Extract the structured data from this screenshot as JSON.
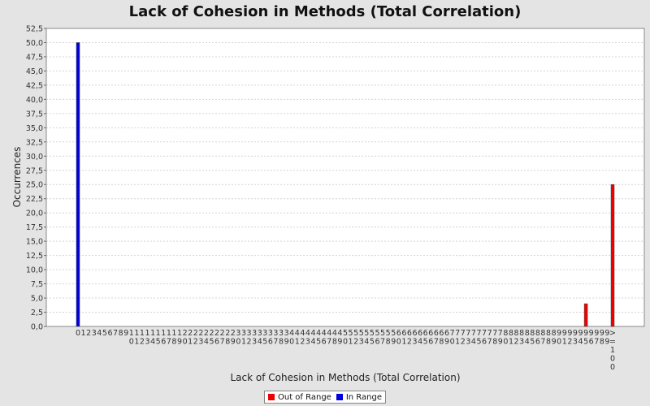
{
  "chart_data": {
    "type": "bar",
    "title": "Lack of Cohesion in Methods (Total Correlation)",
    "xlabel": "Lack of Cohesion in Methods (Total Correlation)",
    "ylabel": "Occurrences",
    "ylim": [
      0,
      52.5
    ],
    "yticks": [
      "0,0",
      "2,5",
      "5,0",
      "7,5",
      "10,0",
      "12,5",
      "15,0",
      "17,5",
      "20,0",
      "22,5",
      "25,0",
      "27,5",
      "30,0",
      "32,5",
      "35,0",
      "37,5",
      "40,0",
      "42,5",
      "45,0",
      "47,5",
      "50,0",
      "52,5"
    ],
    "categories": [
      "0",
      "1",
      "2",
      "3",
      "4",
      "5",
      "6",
      "7",
      "8",
      "9",
      "10",
      "11",
      "12",
      "13",
      "14",
      "15",
      "16",
      "17",
      "18",
      "19",
      "20",
      "21",
      "22",
      "23",
      "24",
      "25",
      "26",
      "27",
      "28",
      "29",
      "30",
      "31",
      "32",
      "33",
      "34",
      "35",
      "36",
      "37",
      "38",
      "39",
      "40",
      "41",
      "42",
      "43",
      "44",
      "45",
      "46",
      "47",
      "48",
      "49",
      "50",
      "51",
      "52",
      "53",
      "54",
      "55",
      "56",
      "57",
      "58",
      "59",
      "60",
      "61",
      "62",
      "63",
      "64",
      "65",
      "66",
      "67",
      "68",
      "69",
      "70",
      "71",
      "72",
      "73",
      "74",
      "75",
      "76",
      "77",
      "78",
      "79",
      "80",
      "81",
      "82",
      "83",
      "84",
      "85",
      "86",
      "87",
      "88",
      "89",
      "90",
      "91",
      "92",
      "93",
      "94",
      "95",
      "96",
      "97",
      "98",
      "99",
      ">=100"
    ],
    "series": [
      {
        "name": "Out of Range",
        "color": "#ee0000",
        "points": [
          {
            "category": "95",
            "value": 4
          },
          {
            "category": ">=100",
            "value": 25
          }
        ]
      },
      {
        "name": "In Range",
        "color": "#0000dd",
        "points": [
          {
            "category": "0",
            "value": 50
          }
        ]
      }
    ],
    "grid": true,
    "legend_position": "bottom"
  }
}
